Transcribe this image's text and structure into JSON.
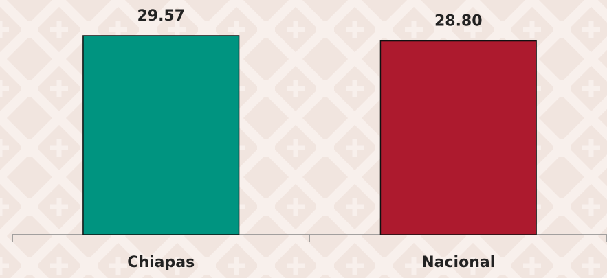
{
  "chart_data": {
    "type": "bar",
    "categories": [
      "Chiapas",
      "Nacional"
    ],
    "series": [
      {
        "colors": [
          "#009480",
          "#ad1a2e"
        ],
        "values": [
          29.57,
          28.8
        ],
        "value_labels": [
          "29.57",
          "28.80"
        ]
      }
    ]
  }
}
